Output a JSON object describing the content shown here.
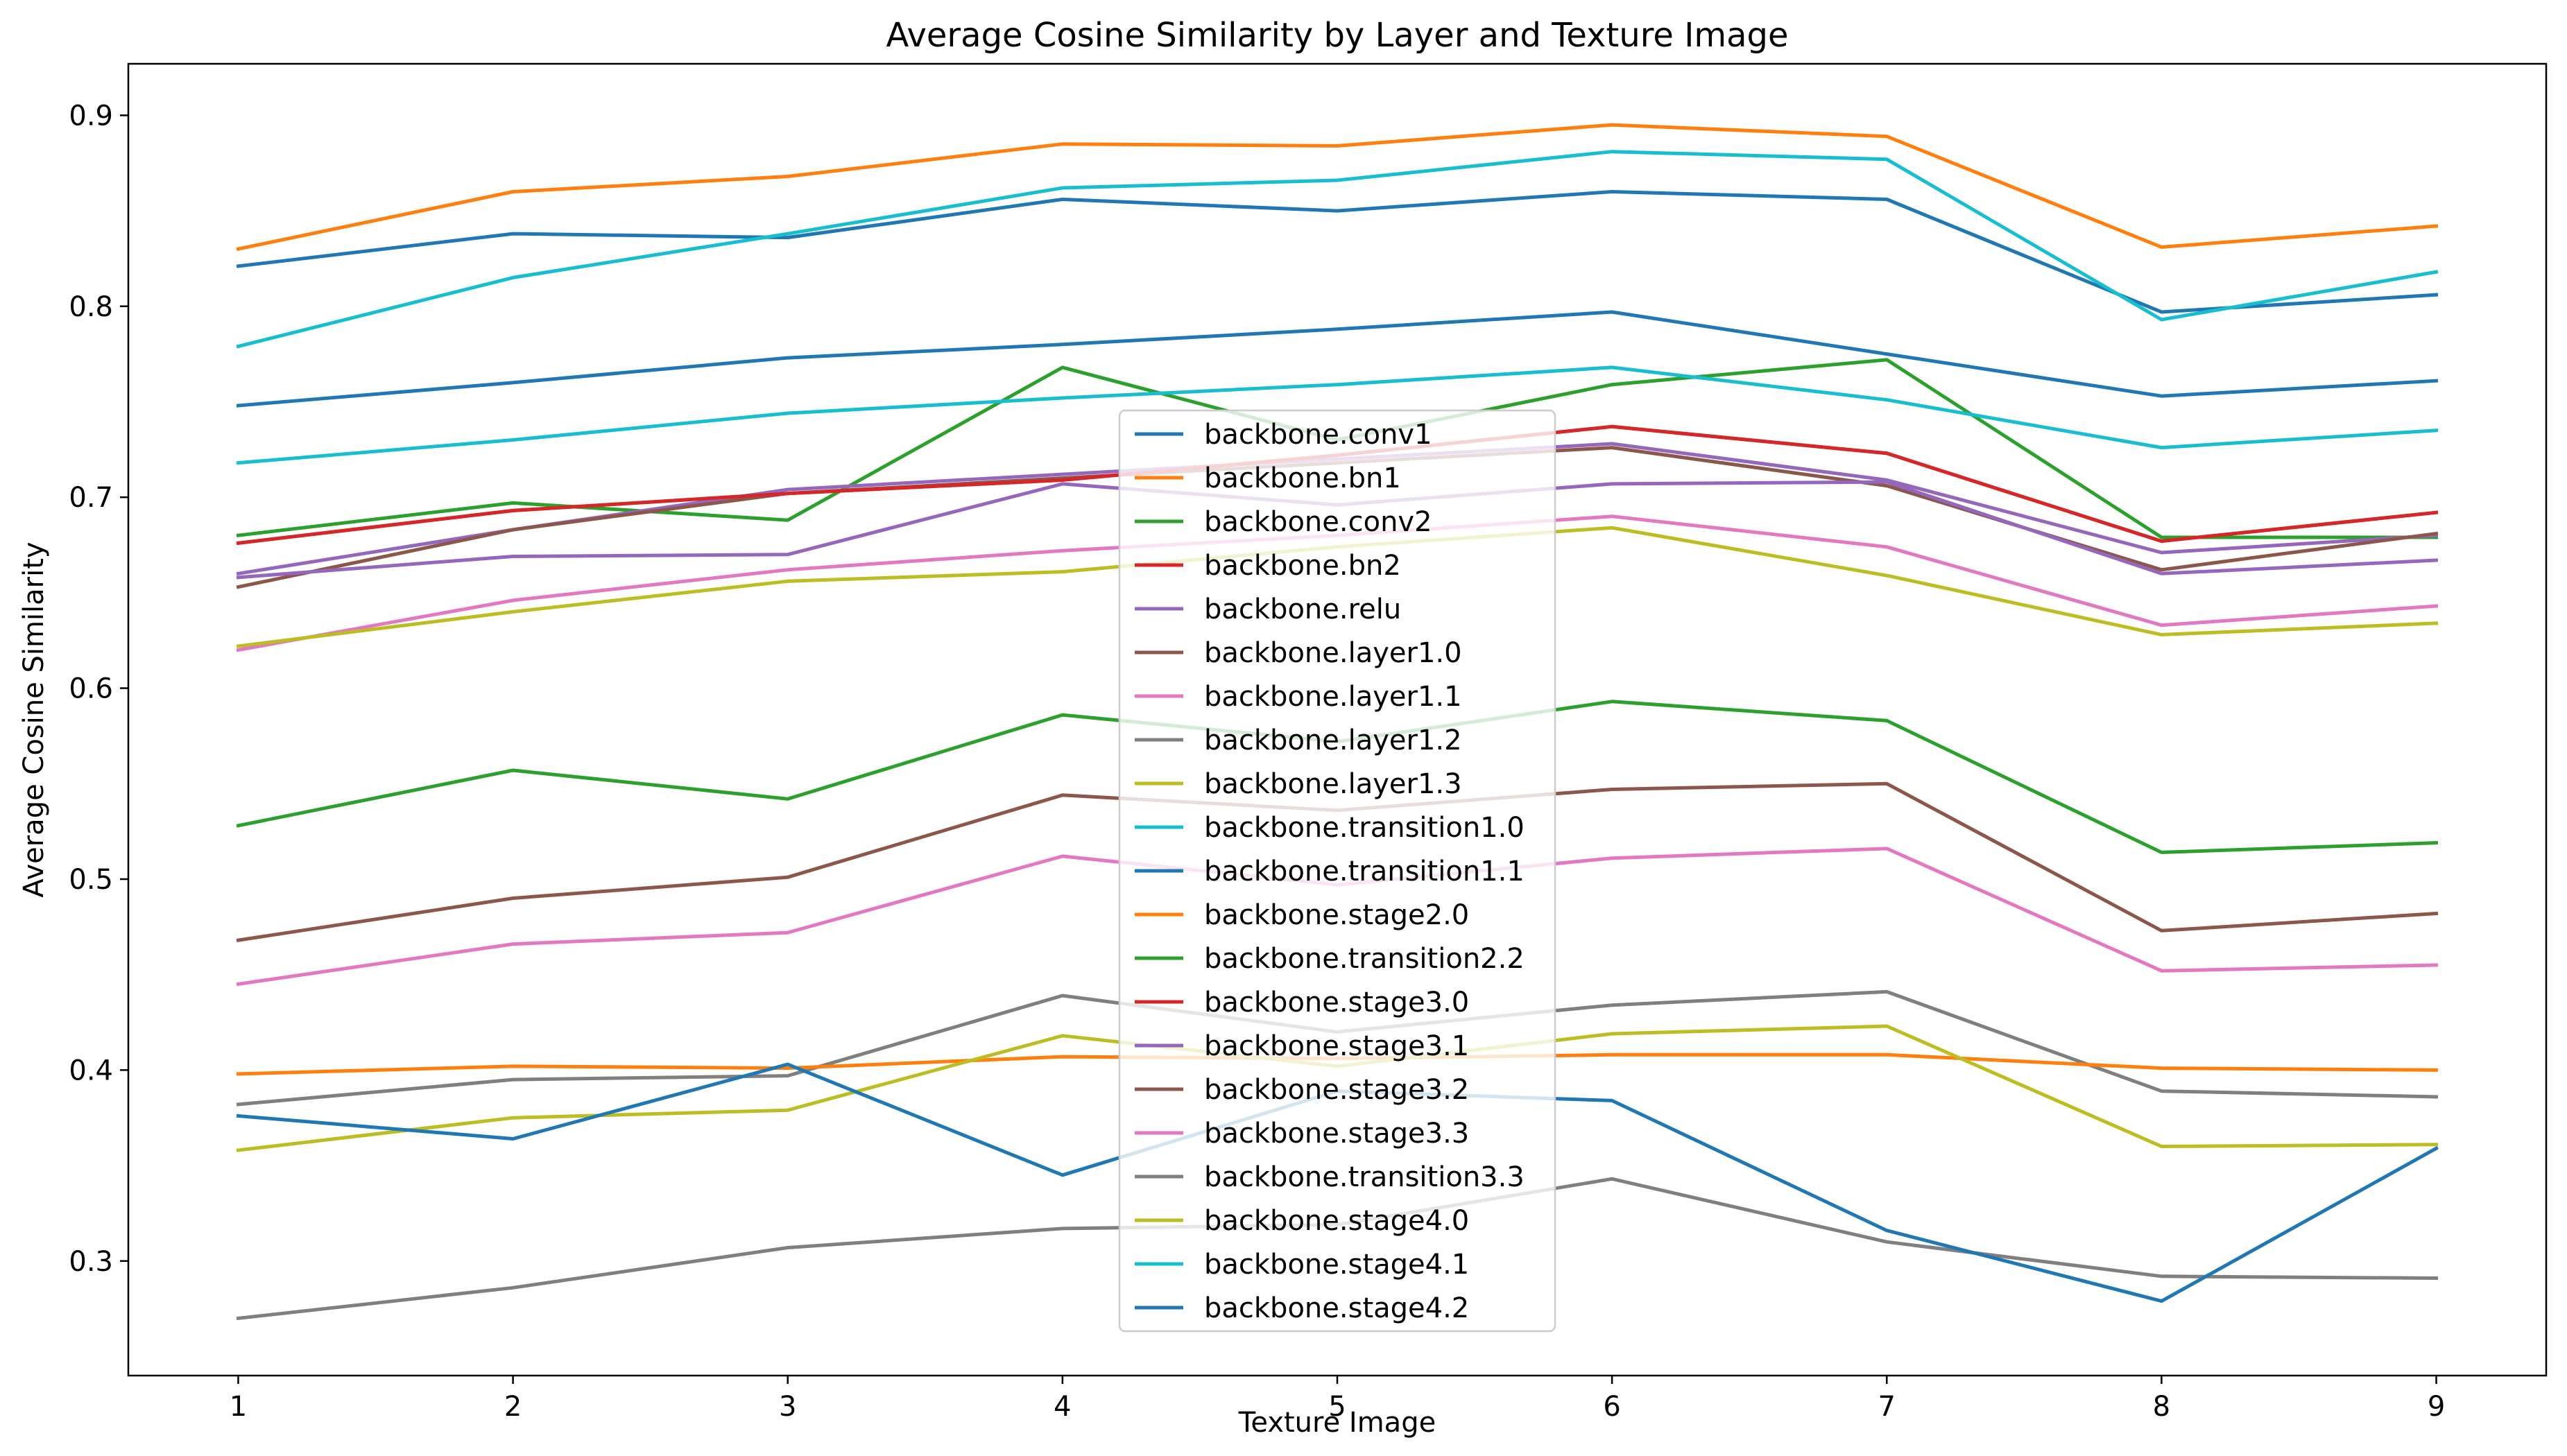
{
  "chart_data": {
    "type": "line",
    "title": "Average Cosine Similarity by Layer and Texture Image",
    "xlabel": "Texture Image",
    "ylabel": "Average Cosine Similarity",
    "x": [
      1,
      2,
      3,
      4,
      5,
      6,
      7,
      8,
      9
    ],
    "x_ticks": [
      "1",
      "2",
      "3",
      "4",
      "5",
      "6",
      "7",
      "8",
      "9"
    ],
    "y_ticks": [
      "0.3",
      "0.4",
      "0.5",
      "0.6",
      "0.7",
      "0.8",
      "0.9"
    ],
    "xlim": [
      0.6,
      9.4
    ],
    "ylim": [
      0.24,
      0.927
    ],
    "grid": false,
    "legend_position": "center",
    "series": [
      {
        "name": "backbone.conv1",
        "color": "#1f77b4",
        "values": [
          0.821,
          0.838,
          0.836,
          0.856,
          0.85,
          0.86,
          0.856,
          0.797,
          0.806
        ]
      },
      {
        "name": "backbone.bn1",
        "color": "#ff7f0e",
        "values": [
          0.83,
          0.86,
          0.868,
          0.885,
          0.884,
          0.895,
          0.889,
          0.831,
          0.842
        ]
      },
      {
        "name": "backbone.conv2",
        "color": "#2ca02c",
        "values": [
          0.68,
          0.697,
          0.688,
          0.768,
          0.73,
          0.759,
          0.772,
          0.679,
          0.679
        ]
      },
      {
        "name": "backbone.bn2",
        "color": "#d62728",
        "values": [
          0.676,
          0.693,
          0.702,
          0.709,
          0.722,
          0.737,
          0.723,
          0.677,
          0.692
        ]
      },
      {
        "name": "backbone.relu",
        "color": "#9467bd",
        "values": [
          0.66,
          0.683,
          0.704,
          0.712,
          0.72,
          0.728,
          0.709,
          0.671,
          0.68
        ]
      },
      {
        "name": "backbone.layer1.0",
        "color": "#8c564b",
        "values": [
          0.653,
          0.683,
          0.702,
          0.71,
          0.718,
          0.726,
          0.706,
          0.662,
          0.681
        ]
      },
      {
        "name": "backbone.layer1.1",
        "color": "#e377c2",
        "values": [
          0.62,
          0.646,
          0.662,
          0.672,
          0.68,
          0.69,
          0.674,
          0.633,
          0.643
        ]
      },
      {
        "name": "backbone.layer1.2",
        "color": "#7f7f7f",
        "values": [
          0.382,
          0.395,
          0.397,
          0.439,
          0.42,
          0.434,
          0.441,
          0.389,
          0.386
        ]
      },
      {
        "name": "backbone.layer1.3",
        "color": "#bcbd22",
        "values": [
          0.622,
          0.64,
          0.656,
          0.661,
          0.674,
          0.684,
          0.659,
          0.628,
          0.634
        ]
      },
      {
        "name": "backbone.transition1.0",
        "color": "#17becf",
        "values": [
          0.779,
          0.815,
          0.838,
          0.862,
          0.866,
          0.881,
          0.877,
          0.793,
          0.818
        ]
      },
      {
        "name": "backbone.transition1.1",
        "color": "#1f77b4",
        "values": [
          0.748,
          0.76,
          0.773,
          0.78,
          0.788,
          0.797,
          0.775,
          0.753,
          0.761
        ]
      },
      {
        "name": "backbone.stage2.0",
        "color": "#ff7f0e",
        "values": [
          0.398,
          0.402,
          0.401,
          0.407,
          0.406,
          0.408,
          0.408,
          0.401,
          0.4
        ]
      },
      {
        "name": "backbone.transition2.2",
        "color": "#2ca02c",
        "values": [
          0.528,
          0.557,
          0.542,
          0.586,
          0.572,
          0.593,
          0.583,
          0.514,
          0.519
        ]
      },
      {
        "name": "backbone.stage3.0",
        "color": "#d62728",
        "values": [
          0.676,
          0.693,
          0.702,
          0.709,
          0.722,
          0.737,
          0.723,
          0.677,
          0.692
        ]
      },
      {
        "name": "backbone.stage3.1",
        "color": "#9467bd",
        "values": [
          0.658,
          0.669,
          0.67,
          0.707,
          0.696,
          0.707,
          0.708,
          0.66,
          0.667
        ]
      },
      {
        "name": "backbone.stage3.2",
        "color": "#8c564b",
        "values": [
          0.468,
          0.49,
          0.501,
          0.544,
          0.536,
          0.547,
          0.55,
          0.473,
          0.482
        ]
      },
      {
        "name": "backbone.stage3.3",
        "color": "#e377c2",
        "values": [
          0.445,
          0.466,
          0.472,
          0.512,
          0.497,
          0.511,
          0.516,
          0.452,
          0.455
        ]
      },
      {
        "name": "backbone.transition3.3",
        "color": "#7f7f7f",
        "values": [
          0.27,
          0.286,
          0.307,
          0.317,
          0.319,
          0.343,
          0.31,
          0.292,
          0.291
        ]
      },
      {
        "name": "backbone.stage4.0",
        "color": "#bcbd22",
        "values": [
          0.358,
          0.375,
          0.379,
          0.418,
          0.402,
          0.419,
          0.423,
          0.36,
          0.361
        ]
      },
      {
        "name": "backbone.stage4.1",
        "color": "#17becf",
        "values": [
          0.718,
          0.73,
          0.744,
          0.752,
          0.759,
          0.768,
          0.751,
          0.726,
          0.735
        ]
      },
      {
        "name": "backbone.stage4.2",
        "color": "#1f77b4",
        "values": [
          0.376,
          0.364,
          0.403,
          0.345,
          0.389,
          0.384,
          0.316,
          0.279,
          0.359
        ]
      }
    ]
  }
}
